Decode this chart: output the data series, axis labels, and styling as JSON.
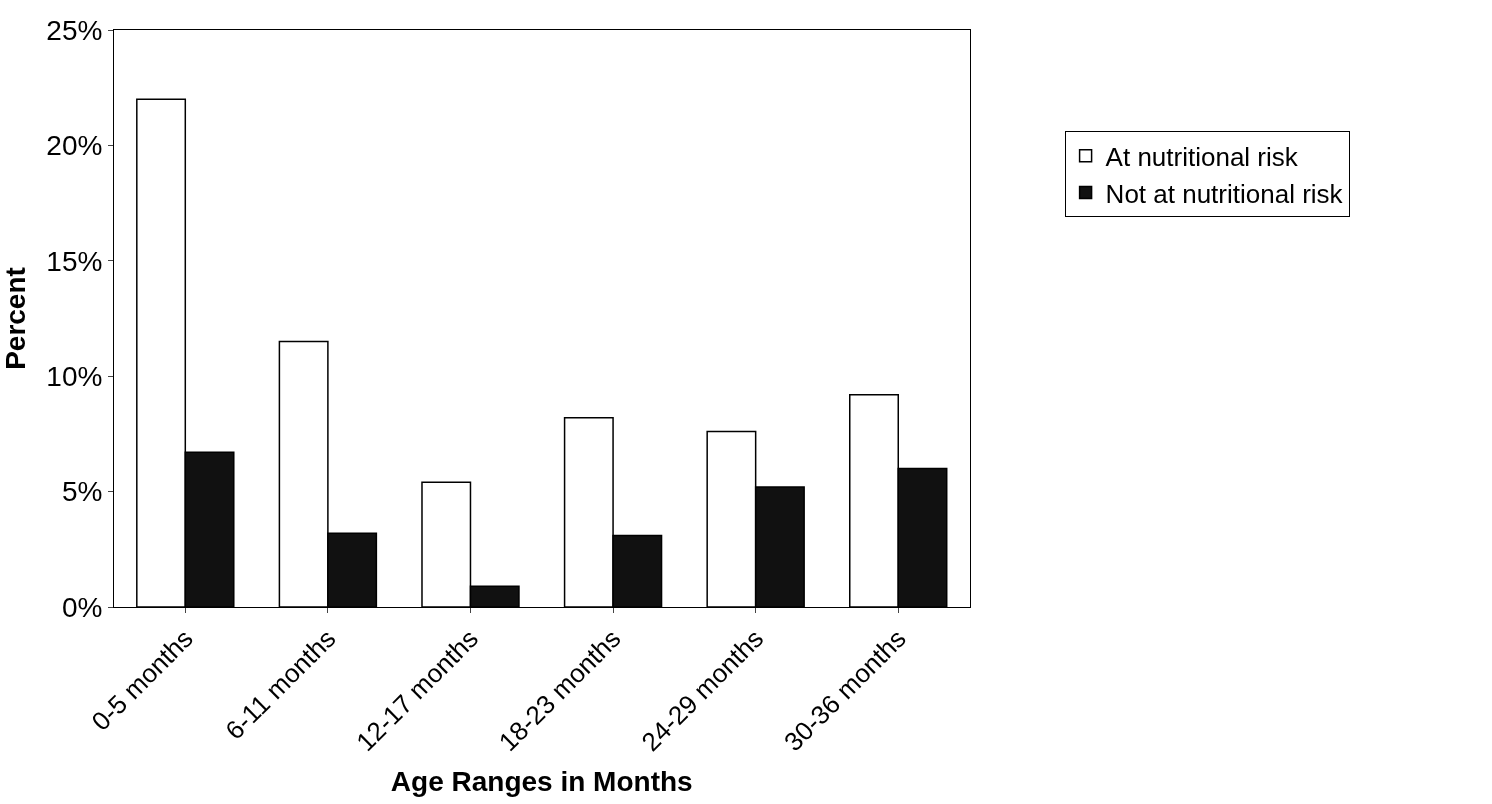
{
  "chart_data": {
    "type": "bar",
    "xlabel": "Age Ranges in Months",
    "ylabel": "Percent",
    "categories": [
      "0-5 months",
      "6-11 months",
      "12-17 months",
      "18-23 months",
      "24-29 months",
      "30-36 months"
    ],
    "series": [
      {
        "name": "At nutritional risk",
        "color": "#ffffff",
        "values": [
          22.0,
          11.5,
          5.4,
          8.2,
          7.6,
          9.2
        ]
      },
      {
        "name": "Not at nutritional risk",
        "color": "#111111",
        "values": [
          6.7,
          3.2,
          0.9,
          3.1,
          5.2,
          6.0
        ]
      }
    ],
    "ylim": [
      0,
      25
    ],
    "yticks": [
      {
        "value": 0,
        "label": "0%"
      },
      {
        "value": 5,
        "label": "5%"
      },
      {
        "value": 10,
        "label": "10%"
      },
      {
        "value": 15,
        "label": "15%"
      },
      {
        "value": 20,
        "label": "20%"
      },
      {
        "value": 25,
        "label": "25%"
      }
    ],
    "legend": "right"
  }
}
